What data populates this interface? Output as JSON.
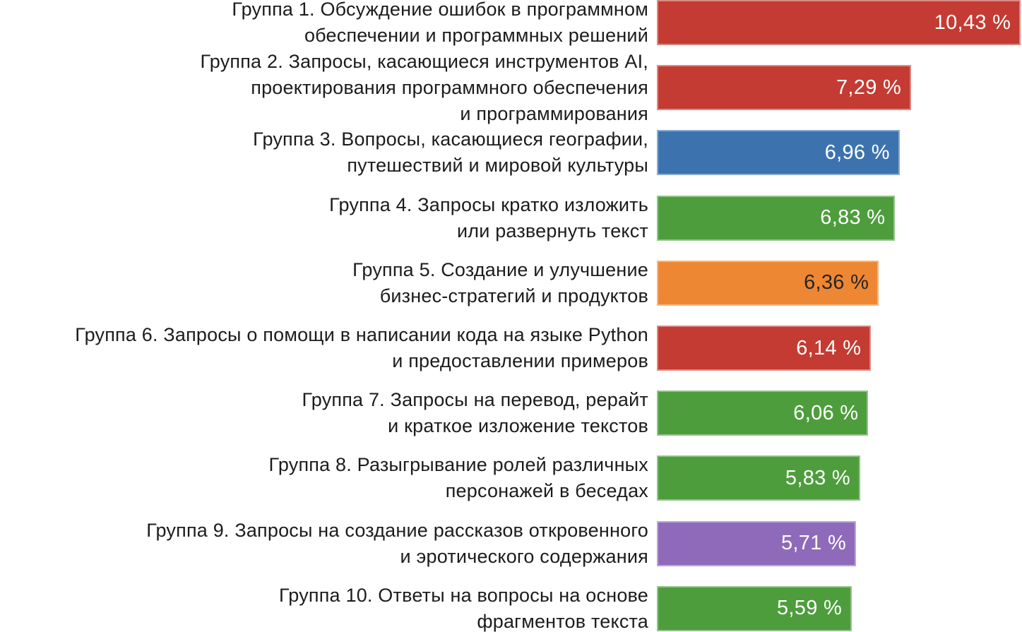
{
  "background": "#FFFFFF",
  "palette": {
    "red": "#C33B32",
    "blue": "#3C73AF",
    "green": "#4E9D3D",
    "orange": "#EE8733",
    "purple": "#8F6ABB"
  },
  "chart_data": {
    "type": "bar",
    "orientation": "horizontal",
    "title": "",
    "xlabel": "",
    "ylabel": "",
    "grid": false,
    "legend": "none",
    "value_unit": "%",
    "decimal_separator": ",",
    "xlim": [
      0,
      10.43
    ],
    "categories": [
      "Группа 1. Обсуждение ошибок в программном обеспечении и программных решений",
      "Группа 2. Запросы, касающиеся инструментов AI, проектирования программного обеспечения и программирования",
      "Группа 3. Вопросы, касающиеся географии, путешествий и мировой культуры",
      "Группа 4. Запросы кратко изложить или развернуть текст",
      "Группа 5. Создание и улучшение бизнес-стратегий и продуктов",
      "Группа 6. Запросы о помощи в написании кода на языке Python и предоставлении примеров",
      "Группа 7. Запросы на перевод, рерайт и краткое изложение текстов",
      "Группа 8. Разыгрывание ролей различных персонажей в беседах",
      "Группа 9. Запросы на создание рассказов откровенного и эротического содержания",
      "Группа 10. Ответы на вопросы на основе фрагментов текста"
    ],
    "values": [
      10.43,
      7.29,
      6.96,
      6.83,
      6.36,
      6.14,
      6.06,
      5.83,
      5.71,
      5.59
    ],
    "bars": [
      {
        "label_lines": [
          "Группа 1. Обсуждение ошибок в программном",
          "обеспечении и программных решений"
        ],
        "value": 10.43,
        "value_label": "10,43 %",
        "color": "#C33B32",
        "value_text_color": "#FFFFFF"
      },
      {
        "label_lines": [
          "Группа 2. Запросы, касающиеся инструментов AI,",
          "проектирования программного обеспечения",
          "и программирования"
        ],
        "value": 7.29,
        "value_label": "7,29 %",
        "color": "#C33B32",
        "value_text_color": "#FFFFFF"
      },
      {
        "label_lines": [
          "Группа 3. Вопросы, касающиеся географии,",
          "путешествий и мировой культуры"
        ],
        "value": 6.96,
        "value_label": "6,96 %",
        "color": "#3C73AF",
        "value_text_color": "#FFFFFF"
      },
      {
        "label_lines": [
          "Группа 4. Запросы кратко изложить",
          "или развернуть текст"
        ],
        "value": 6.83,
        "value_label": "6,83 %",
        "color": "#4E9D3D",
        "value_text_color": "#FFFFFF"
      },
      {
        "label_lines": [
          "Группа 5. Создание и улучшение",
          "бизнес-стратегий и продуктов"
        ],
        "value": 6.36,
        "value_label": "6,36 %",
        "color": "#EE8733",
        "value_text_color": "#262626"
      },
      {
        "label_lines": [
          "Группа 6. Запросы о помощи в написании кода на языке Python",
          "и предоставлении примеров"
        ],
        "value": 6.14,
        "value_label": "6,14 %",
        "color": "#C33B32",
        "value_text_color": "#FFFFFF"
      },
      {
        "label_lines": [
          "Группа 7. Запросы на перевод, рерайт",
          "и краткое изложение текстов"
        ],
        "value": 6.06,
        "value_label": "6,06 %",
        "color": "#4E9D3D",
        "value_text_color": "#FFFFFF"
      },
      {
        "label_lines": [
          "Группа 8. Разыгрывание ролей различных",
          "персонажей в беседах"
        ],
        "value": 5.83,
        "value_label": "5,83 %",
        "color": "#4E9D3D",
        "value_text_color": "#FFFFFF"
      },
      {
        "label_lines": [
          "Группа 9. Запросы на создание рассказов откровенного",
          "и эротического содержания"
        ],
        "value": 5.71,
        "value_label": "5,71 %",
        "color": "#8F6ABB",
        "value_text_color": "#FFFFFF"
      },
      {
        "label_lines": [
          "Группа 10. Ответы на вопросы на основе",
          "фрагментов текста"
        ],
        "value": 5.59,
        "value_label": "5,59 %",
        "color": "#4E9D3D",
        "value_text_color": "#FFFFFF"
      }
    ]
  }
}
